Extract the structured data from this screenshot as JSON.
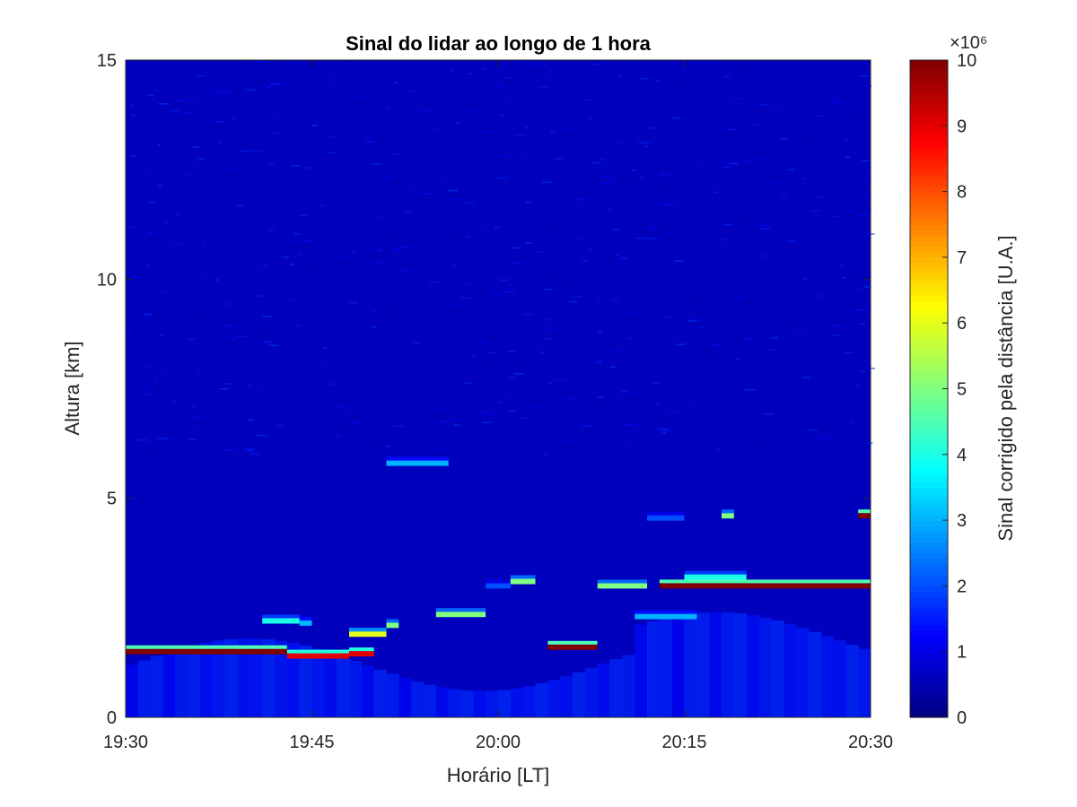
{
  "chart_data": {
    "type": "heatmap",
    "title": "Sinal do lidar ao longo de 1 hora",
    "xlabel": "Horário [LT]",
    "ylabel": "Altura [km]",
    "colorbar_label": "Sinal corrigido pela distância [U.A.]",
    "colorbar_exponent": "×10⁶",
    "colormap": "jet",
    "x_ticks": [
      "19:30",
      "19:45",
      "20:00",
      "20:15",
      "20:30"
    ],
    "x_tick_minutes": [
      0,
      15,
      30,
      45,
      60
    ],
    "xlim_minutes": [
      0,
      60
    ],
    "y_ticks": [
      0,
      5,
      10,
      15
    ],
    "ylim": [
      0,
      15
    ],
    "clim": [
      0,
      10
    ],
    "colorbar_ticks": [
      0,
      1,
      2,
      3,
      4,
      5,
      6,
      7,
      8,
      9,
      10
    ],
    "grid": false,
    "layers": [
      {
        "kind": "cloud",
        "start_min": 0,
        "end_min": 13,
        "altitude_km": 1.5,
        "value": 10
      },
      {
        "kind": "cloud",
        "start_min": 13,
        "end_min": 18,
        "altitude_km": 1.4,
        "value": 9
      },
      {
        "kind": "cloud",
        "start_min": 18,
        "end_min": 20,
        "altitude_km": 1.45,
        "value": 9
      },
      {
        "kind": "cloud",
        "start_min": 11,
        "end_min": 14,
        "altitude_km": 2.2,
        "value": 4
      },
      {
        "kind": "cloud",
        "start_min": 14,
        "end_min": 15,
        "altitude_km": 2.15,
        "value": 3
      },
      {
        "kind": "cloud",
        "start_min": 18,
        "end_min": 21,
        "altitude_km": 1.9,
        "value": 6
      },
      {
        "kind": "cloud",
        "start_min": 21,
        "end_min": 22,
        "altitude_km": 2.1,
        "value": 5
      },
      {
        "kind": "cloud",
        "start_min": 25,
        "end_min": 29,
        "altitude_km": 2.35,
        "value": 5
      },
      {
        "kind": "cloud",
        "start_min": 29,
        "end_min": 31,
        "altitude_km": 3.0,
        "value": 2
      },
      {
        "kind": "cloud",
        "start_min": 31,
        "end_min": 33,
        "altitude_km": 3.1,
        "value": 5
      },
      {
        "kind": "cloud",
        "start_min": 21,
        "end_min": 26,
        "altitude_km": 5.8,
        "value": 3
      },
      {
        "kind": "cloud",
        "start_min": 34,
        "end_min": 38,
        "altitude_km": 1.6,
        "value": 10
      },
      {
        "kind": "cloud",
        "start_min": 38,
        "end_min": 42,
        "altitude_km": 3.0,
        "value": 5
      },
      {
        "kind": "cloud",
        "start_min": 41,
        "end_min": 46,
        "altitude_km": 2.3,
        "value": 3
      },
      {
        "kind": "cloud",
        "start_min": 43,
        "end_min": 60,
        "altitude_km": 3.0,
        "value": 10
      },
      {
        "kind": "cloud",
        "start_min": 45,
        "end_min": 50,
        "altitude_km": 3.2,
        "value": 4
      },
      {
        "kind": "cloud",
        "start_min": 42,
        "end_min": 45,
        "altitude_km": 4.55,
        "value": 2
      },
      {
        "kind": "cloud",
        "start_min": 48,
        "end_min": 49,
        "altitude_km": 4.6,
        "value": 5
      },
      {
        "kind": "cloud",
        "start_min": 59,
        "end_min": 60,
        "altitude_km": 4.6,
        "value": 10
      }
    ]
  }
}
